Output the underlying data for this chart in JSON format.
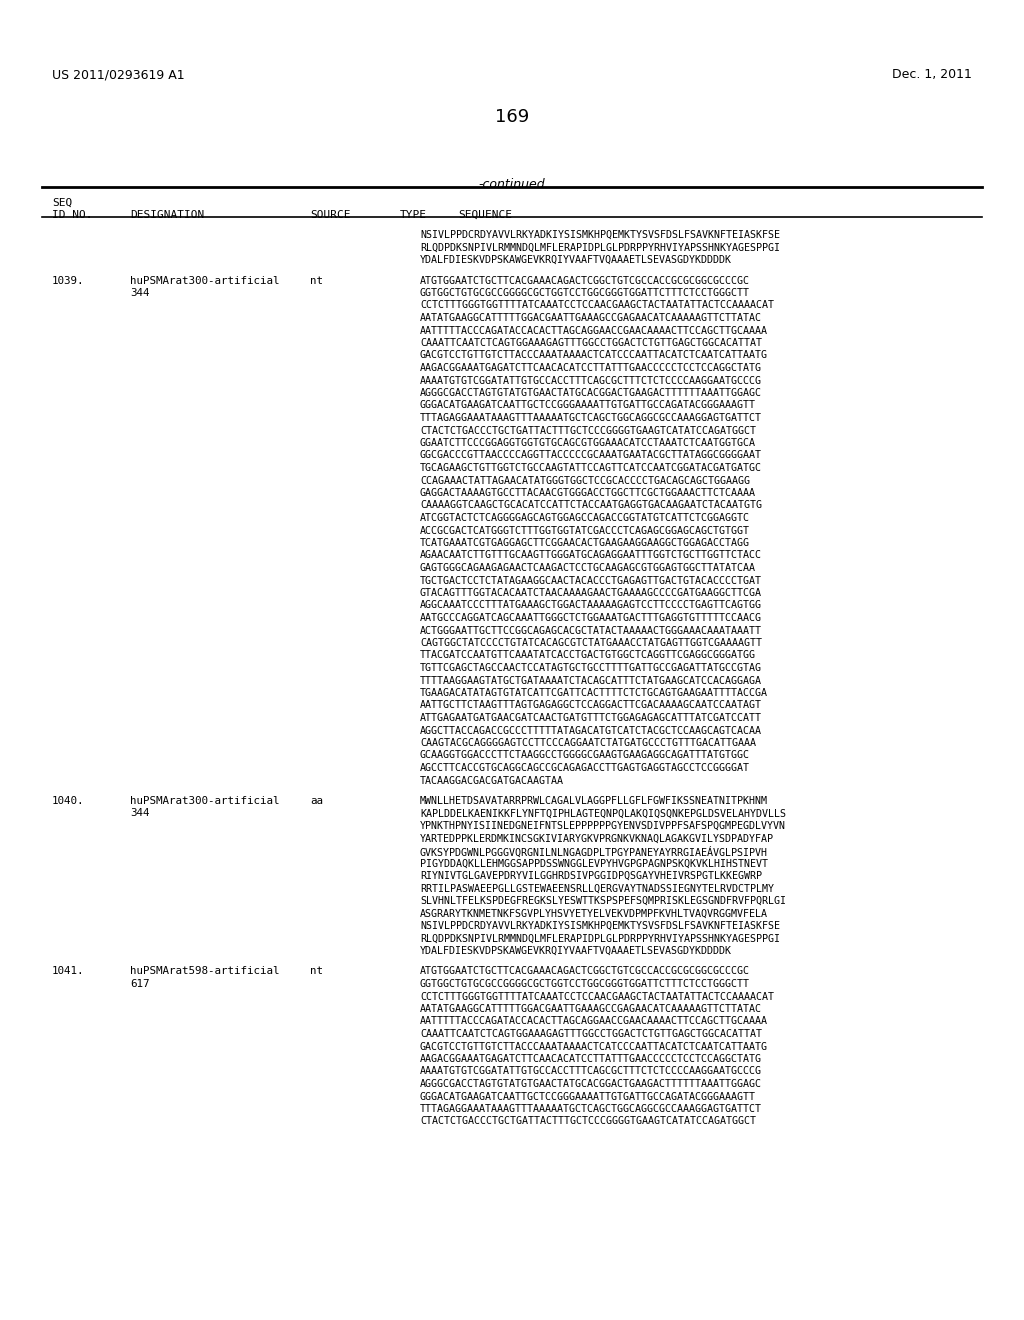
{
  "page_number": "169",
  "header_left": "US 2011/0293619 A1",
  "header_right": "Dec. 1, 2011",
  "continued_label": "-continued",
  "background_color": "#ffffff",
  "entry0_seq_lines": [
    "NSIVLPPDCRDYAVVLRKYADKIYSISMKHPQEMKTYSVSFDSLFSAVKNFTEIASKFSE",
    "RLQDPDKSNPIVLRMMNDQLMFLERAPIDPLGLPDRPPYRHVIYAPSSHNKYAGESPPGI",
    "YDALFDIESKVDPSKAWGEVKRQIYVAAFTVQAAAETLSEVASGDYKDDDDK"
  ],
  "entry1039_id": "1039.",
  "entry1039_desig": "huPSMArat300-artificial",
  "entry1039_desig2": "344",
  "entry1039_source": "nt",
  "entry1039_seq": [
    "ATGTGGAATCTGCTTCACGAAACAGACTCGGCTGTCGCCACCGCGCGGCGCCCGC",
    "GGTGGCTGTGCGCCGGGGCGCTGGTCCTGGCGGGTGGATTCTTTCTCCTGGGCTT",
    "CCTCTTTGGGTGGTTTTATCAAATCCTCCAACGAAGCTACTAATATTACTCCAAAACAT",
    "AATATGAAGGCATTTTTGGACGAATTGAAAGCCGAGAACATCAAAAAGTTCTTATAC",
    "AATTTTTACCCAGATACCACACTTAGCAGGAACCGAACAAAACTTCCAGCTTGCAAAA",
    "CAAATTCAATCTCAGTGGAAAGAGTTTGGCCTGGACTCTGTTGAGCTGGCACATTAT",
    "GACGTCCTGTTGTCTTACCCAAATAAAACTCATCCCAATTACATCTCAATCATTAATG",
    "AAGACGGAAATGAGATCTTCAACACATCCTTATTTGAACCCCCTCCTCCAGGCTATG",
    "AAAATGTGTCGGATATTGTGCCACCTTTCAGCGCTTTCTCTCCCCAAGGAATGCCCG",
    "AGGGCGACCTAGTGTATGTGAACTATGCACGGACTGAAGACTTTTTTAAATTGGAGC",
    "GGGACATGAAGATCAATTGCTCCGGGAAAATTGTGATTGCCAGATACGGGAAAGTT",
    "TTTAGAGGAAATAAAGTTTAAAAATGCTCAGCTGGCAGGCGCCAAAGGAGTGATTCT",
    "CTACTCTGACCCTGCTGATTACTTTGCTCCCGGGGTGAAGTCATATCCAGATGGCT",
    "GGAATCTTCCCGGAGGTGGTGTGCAGCGTGGAAACATCCTAAATCTCAATGGTGCA",
    "GGCGACCCGTTAACCCCAGGTTACCCCCGCAAATGAATACGCTTATAGGCGGGGAAT",
    "TGCAGAAGCTGTTGGTCTGCCAAGTATTCCAGTTCATCCAATCGGATACGATGATGC",
    "CCAGAAACTATTAGAACATATGGGTGGCTCCGCACCCCTGACAGCAGCTGGAAGG",
    "GAGGACTAAAAGTGCCTTACAACGTGGGACCTGGCTTCGCTGGAAACTTCTCAAAA",
    "CAAAAGGTCAAGCTGCACATCCATTCTACCAATGAGGTGACAAGAATCTACAATGTG",
    "ATCGGTACTCTCAGGGGAGCAGTGGAGCCAGACCGGTATGTCATTCTCGGAGGTC",
    "ACCGCGACTCATGGGTCTTTGGTGGTATCGACCCTCAGAGCGGAGCAGCTGTGGT",
    "TCATGAAATCGTGAGGAGCTTCGGAACACTGAAGAAGGAAGGCTGGAGACCTAGG",
    "AGAACAATCTTGTTTGCAAGTTGGGATGCAGAGGAATTTGGTCTGCTTGGTTCTACC",
    "GAGTGGGCAGAAGAGAACTCAAGACTCCTGCAAGAGCGTGGAGTGGCTTATATCAA",
    "TGCTGACTCCTCTATAGAAGGCAACTACACCCTGAGAGTTGACTGTACACCCCTGAT",
    "GTACAGTTTGGTACACAATCTAACAAAAGAACTGAAAAGCCCCGATGAAGGCTTCGA",
    "AGGCAAATCCCTTTATGAAAGCTGGACTAAAAAGAGTCCTTCCCCTGAGTTCAGTGG",
    "AATGCCCAGGATCAGCAAATTGGGCTCTGGAAATGACTTTGAGGTGTTTTTCCAACG",
    "ACTGGGAATTGCTTCCGGCAGAGCACGCTATACTAAAAACTGGGAAACAAATAAATT",
    "CAGTGGCTATCCCCTGTATCACAGCGTCTATGAAACCTATGAGTTGGTCGAAAAGTT",
    "TTACGATCCAATGTTCAAATATCACCTGACTGTGGCTCAGGTTCGAGGCGGGATGG",
    "TGTTCGAGCTAGCCAACTCCATAGTGCTGCCTTTTGATTGCCGAGATTATGCCGTAG",
    "TTTTAAGGAAGTATGCTGATAAAATCTACAGCATTTCTATGAAGCATCCACAGGAGA",
    "TGAAGACATATAGTGTATCATTCGATTCACTTTTCTCTGCAGTGAAGAATTTTACCGA",
    "AATTGCTTCTAAGTTTAGTGAGAGGCTCCAGGACTTCGACAAAAGCAATCCAATAGT",
    "ATTGAGAATGATGAACGATCAACTGATGTTTCTGGAGAGAGCATTTATCGATCCATT",
    "AGGCTTACCAGACCGCCCTTTTTATAGACATGTCATCTACGCTCCAAGCAGTCACAA",
    "CAAGTACGCAGGGGAGTCCTTCCCAGGAATCTATGATGCCCTGTTTGACATTGAAA",
    "GCAAGGTGGACCCTTCTAAGGCCTGGGGCGAAGTGAAGAGGCAGATTTATGTGGC",
    "AGCCTTCACCGTGCAGGCAGCCGCAGAGACCTTGAGTGAGGTAGCCTCCGGGGAT",
    "TACAAGGACGACGATGACAAGTAA"
  ],
  "entry1040_id": "1040.",
  "entry1040_desig": "huPSMArat300-artificial",
  "entry1040_desig2": "344",
  "entry1040_source": "aa",
  "entry1040_seq": [
    "MWNLLHETDSAVATARRPRWLCAGALVLAGGPFLLGFLFGWFIKSSNEATNITPKHNM",
    "KAPLDDELKAENIKKFLYNFTQIPHLAGTEQNPQLAKQIQSQNKEPGLDSVELAHYDVLLS",
    "YPNKTHPNYISIINEDGNEIFNTSLEPPPPPPGYENVSDIVPPFSAFSPQGMPEGDLVYVN",
    "YARTEDPPKLERDMKINCSGKIVIARYGKVPRGNKVKNAQLAGAKGVILYSDPADYFAP",
    "GVKSYPDGWNLPGGGVQRGNILNLNGAGDPLTPGYPANEYAYRRGIAEÁVGLPSIPVH",
    "PIGYDDAQKLLEHMGGSAPPDSSWNGGLEVPYHVGPGPAGNPSKQKVKLHIHSTNEVT",
    "RIYNIVTGLGAVEPDRYVILGGHRDSIVPGGIDPQSGAYVHEIVRSPGTLKKEGWRP",
    "RRTILPASWAEEPGLLGSTEWAEENSRLLQERGVAYTNADSSIEGNYTELRVDCTPLMY",
    "SLVHNLTFELKSPDEGFREGKSLYESWTTKSPSPEFSQMPRISKLEGSGNDFRVFPQRLGI",
    "ASGRARYTKNMETNKFSGVPLYHSVYETYELVEKVDPMPFKVHLTVAQVRGGMVFELA",
    "NSIVLPPDCRDYAVVLRKYADKIYSISMKHPQEMKTYSVSFDSLFSAVKNFTEIASKFSE",
    "RLQDPDKSNPIVLRMMNDQLMFLERAPIDPLGLPDRPPYRHVIYAPSSHNKYAGESPPGI",
    "YDALFDIESKVDPSKAWGEVKRQIYVAAFTVQAAAETLSEVASGDYKDDDDK"
  ],
  "entry1041_id": "1041.",
  "entry1041_desig": "huPSMArat598-artificial",
  "entry1041_desig2": "617",
  "entry1041_source": "nt",
  "entry1041_seq": [
    "ATGTGGAATCTGCTTCACGAAACAGACTCGGCTGTCGCCACCGCGCGGCGCCCGC",
    "GGTGGCTGTGCGCCGGGGCGCTGGTCCTGGCGGGTGGATTCTTTCTCCTGGGCTT",
    "CCTCTTTGGGTGGTTTTATCAAATCCTCCAACGAAGCTACTAATATTACTCCAAAACAT",
    "AATATGAAGGCATTTTTGGACGAATTGAAAGCCGAGAACATCAAAAAGTTCTTATAC",
    "AATTTTTACCCAGATACCACACTTAGCAGGAACCGAACAAAACTTCCAGCTTGCAAAA",
    "CAAATTCAATCTCAGTGGAAAGAGTTTGGCCTGGACTCTGTTGAGCTGGCACATTAT",
    "GACGTCCTGTTGTCTTACCCAAATAAAACTCATCCCAATTACATCTCAATCATTAATG",
    "AAGACGGAAATGAGATCTTCAACACATCCTTATTTGAACCCCCTCCTCCAGGCTATG",
    "AAAATGTGTCGGATATTGTGCCACCTTTCAGCGCTTTCTCTCCCCAAGGAATGCCCG",
    "AGGGCGACCTAGTGTATGTGAACTATGCACGGACTGAAGACTTTTTTAAATTGGAGC",
    "GGGACATGAAGATCAATTGCTCCGGGAAAATTGTGATTGCCAGATACGGGAAAGTT",
    "TTTAGAGGAAATAAAGTTTAAAAATGCTCAGCTGGCAGGCGCCAAAGGAGTGATTCT",
    "CTACTCTGACCCTGCTGATTACTTTGCTCCCGGGGTGAAGTCATATCCAGATGGCT"
  ]
}
